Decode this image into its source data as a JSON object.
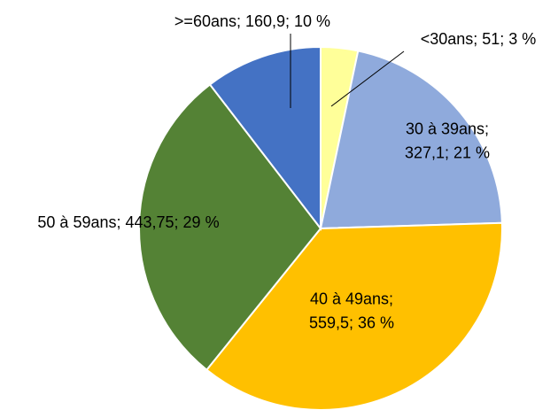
{
  "chart_data": {
    "type": "pie",
    "categories": [
      "<30ans",
      "30 à 39ans",
      "40 à 49ans",
      "50 à 59ans",
      ">=60ans"
    ],
    "values": [
      51,
      327.1,
      559.5,
      443.75,
      160.9
    ],
    "value_labels": [
      [
        "<30ans; 51; 3 %"
      ],
      [
        "30 à 39ans;",
        "327,1; 21 %"
      ],
      [
        "40 à 49ans;",
        "559,5; 36 %"
      ],
      [
        "50 à 59ans; 443,75; 29 %"
      ],
      [
        ">=60ans; 160,9; 10 %"
      ]
    ],
    "colors": [
      "#ffff99",
      "#8faadc",
      "#ffc000",
      "#548235",
      "#4472c4"
    ]
  }
}
